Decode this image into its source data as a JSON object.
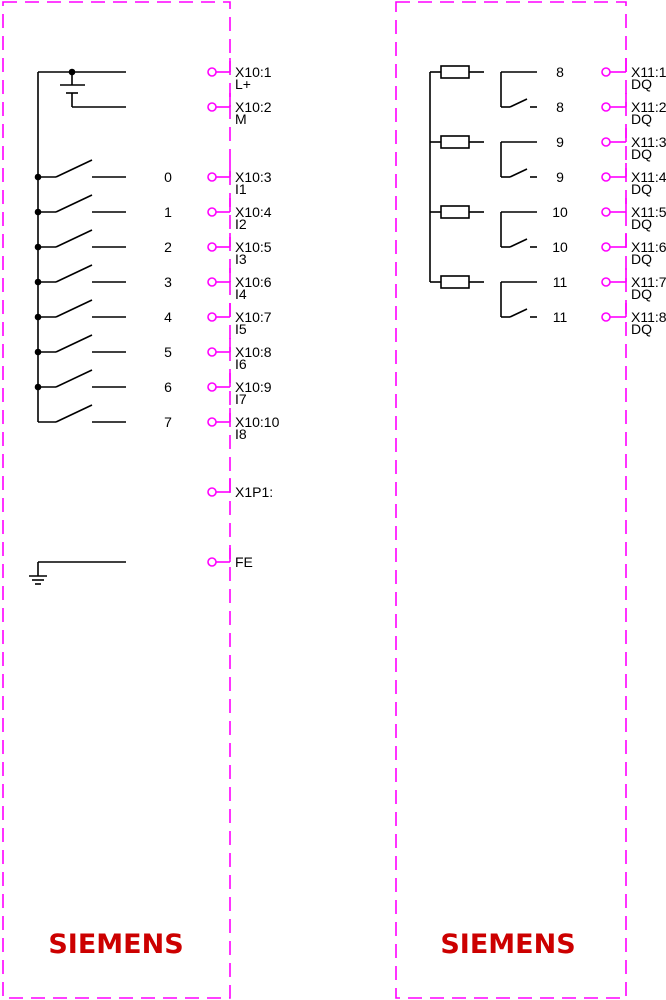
{
  "colors": {
    "frame": "#ff00ff",
    "wire": "#000000",
    "logo": "#cc0000"
  },
  "left_module": {
    "logo": "SIEMENS",
    "power_terminals": [
      {
        "terminal": "X10:1",
        "signal": "L+"
      },
      {
        "terminal": "X10:2",
        "signal": "M"
      }
    ],
    "inputs": [
      {
        "channel": "0",
        "terminal": "X10:3",
        "signal": "I1"
      },
      {
        "channel": "1",
        "terminal": "X10:4",
        "signal": "I2"
      },
      {
        "channel": "2",
        "terminal": "X10:5",
        "signal": "I3"
      },
      {
        "channel": "3",
        "terminal": "X10:6",
        "signal": "I4"
      },
      {
        "channel": "4",
        "terminal": "X10:7",
        "signal": "I5"
      },
      {
        "channel": "5",
        "terminal": "X10:8",
        "signal": "I6"
      },
      {
        "channel": "6",
        "terminal": "X10:9",
        "signal": "I7"
      },
      {
        "channel": "7",
        "terminal": "X10:10",
        "signal": "I8"
      }
    ],
    "extra_terminals": [
      {
        "terminal": "X1P1:"
      },
      {
        "terminal": "FE"
      }
    ]
  },
  "right_module": {
    "logo": "SIEMENS",
    "outputs": [
      {
        "channel": "8",
        "terminal": "X11:1",
        "signal": "DQ"
      },
      {
        "channel": "8",
        "terminal": "X11:2",
        "signal": "DQ"
      },
      {
        "channel": "9",
        "terminal": "X11:3",
        "signal": "DQ"
      },
      {
        "channel": "9",
        "terminal": "X11:4",
        "signal": "DQ"
      },
      {
        "channel": "10",
        "terminal": "X11:5",
        "signal": "DQ"
      },
      {
        "channel": "10",
        "terminal": "X11:6",
        "signal": "DQ"
      },
      {
        "channel": "11",
        "terminal": "X11:7",
        "signal": "DQ"
      },
      {
        "channel": "11",
        "terminal": "X11:8",
        "signal": "DQ"
      }
    ]
  }
}
